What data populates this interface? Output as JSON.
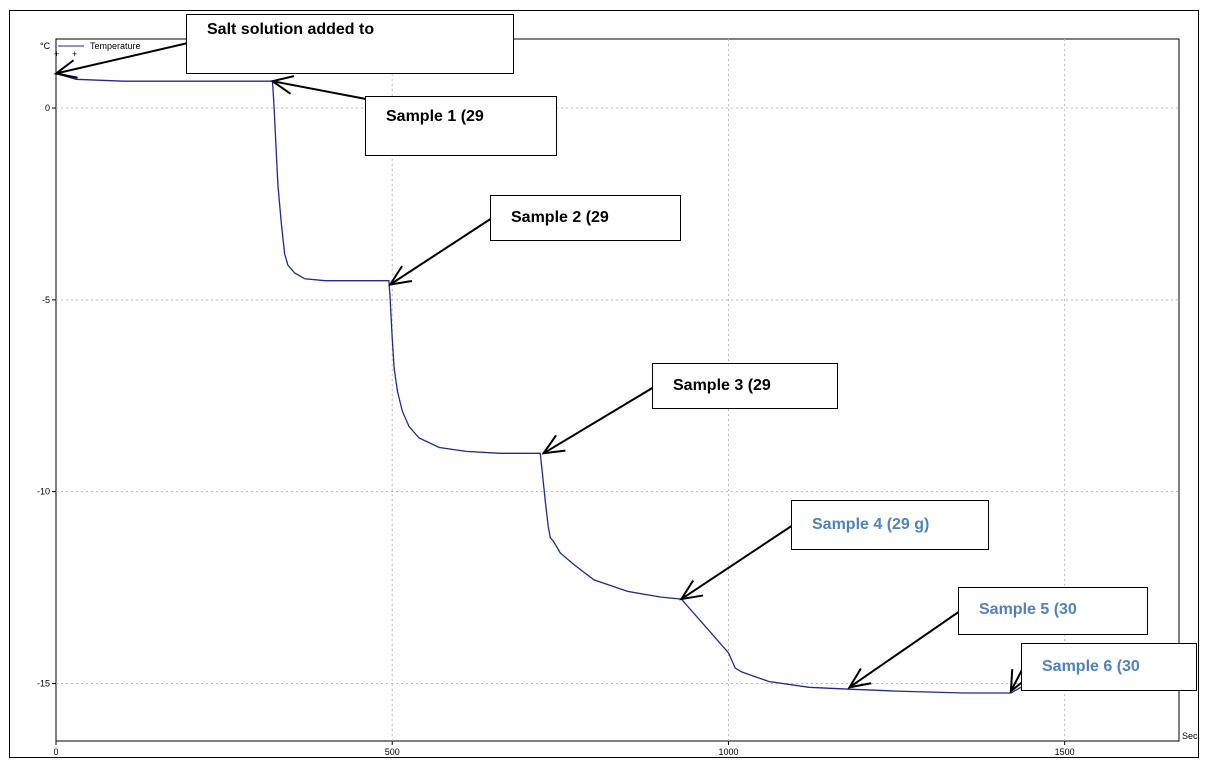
{
  "chart_data": {
    "type": "line",
    "title": "",
    "xlabel": "Sec",
    "ylabel": "°C",
    "xlim": [
      0,
      1670
    ],
    "ylim": [
      -16.5,
      1.8
    ],
    "x_ticks": [
      0,
      500,
      1000,
      1500
    ],
    "y_ticks": [
      0,
      -5,
      -10,
      -15
    ],
    "x_tick_labels": [
      "0",
      "500",
      "1000",
      "1500"
    ],
    "y_tick_labels": [
      "0",
      "-5",
      "-10",
      "-15"
    ],
    "grid": true,
    "legend": {
      "position": "top-left",
      "entries": [
        "Temperature"
      ]
    },
    "series": [
      {
        "name": "Temperature",
        "color": "#1f2a8c",
        "x": [
          0,
          30,
          100,
          200,
          300,
          322,
          324,
          330,
          335,
          340,
          345,
          355,
          370,
          400,
          450,
          495,
          497,
          500,
          503,
          508,
          515,
          525,
          540,
          570,
          610,
          660,
          700,
          720,
          722,
          725,
          728,
          732,
          735,
          740,
          750,
          770,
          800,
          850,
          900,
          930,
          950,
          980,
          1000,
          1010,
          1020,
          1060,
          1120,
          1180,
          1250,
          1350,
          1420,
          1440,
          1500,
          1580,
          1650,
          1670
        ],
        "y": [
          0.9,
          0.75,
          0.7,
          0.7,
          0.7,
          0.7,
          0.1,
          -2.0,
          -3.0,
          -3.8,
          -4.1,
          -4.3,
          -4.45,
          -4.5,
          -4.5,
          -4.5,
          -5.0,
          -6.0,
          -6.8,
          -7.4,
          -7.9,
          -8.3,
          -8.6,
          -8.85,
          -8.95,
          -9.0,
          -9.0,
          -9.0,
          -9.3,
          -9.8,
          -10.3,
          -10.9,
          -11.2,
          -11.3,
          -11.6,
          -11.9,
          -12.3,
          -12.6,
          -12.75,
          -12.8,
          -13.2,
          -13.8,
          -14.2,
          -14.6,
          -14.7,
          -14.95,
          -15.1,
          -15.15,
          -15.2,
          -15.25,
          -15.25,
          -15.05,
          -14.95,
          -14.95,
          -14.9,
          -14.95
        ]
      }
    ],
    "annotations": [
      {
        "text": "Salt solution added to",
        "color": "#000000",
        "arrow_target": {
          "x": 0,
          "y": 0.9
        }
      },
      {
        "text": "Sample 1 (29",
        "color": "#000000",
        "arrow_target": {
          "x": 322,
          "y": 0.7
        }
      },
      {
        "text": "Sample 2 (29",
        "color": "#000000",
        "arrow_target": {
          "x": 497,
          "y": -4.6
        }
      },
      {
        "text": "Sample 3 (29",
        "color": "#000000",
        "arrow_target": {
          "x": 725,
          "y": -9.0
        }
      },
      {
        "text": "Sample 4 (29 g)",
        "color": "#4f81bd",
        "arrow_target": {
          "x": 930,
          "y": -12.8
        }
      },
      {
        "text": "Sample 5 (30",
        "color": "#4f81bd",
        "arrow_target": {
          "x": 1180,
          "y": -15.1
        }
      },
      {
        "text": "Sample 6 (30",
        "color": "#4f81bd",
        "arrow_target": {
          "x": 1420,
          "y": -15.2
        }
      }
    ]
  }
}
